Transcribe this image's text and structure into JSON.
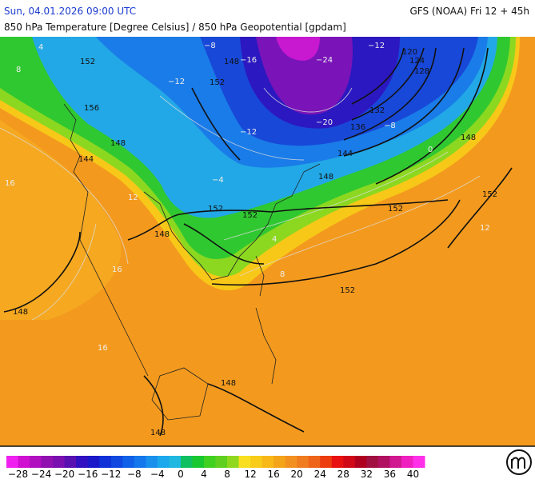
{
  "header": {
    "datetime": "Sun, 04.01.2026 09:00 UTC",
    "model": "GFS (NOAA) Fri 12 + 45h",
    "title": "850 hPa Temperature [Degree Celsius] / 850 hPa Geopotential [gpdam]"
  },
  "map": {
    "contour_labels": [
      "152",
      "148",
      "156",
      "148",
      "144",
      "152",
      "152",
      "148",
      "152",
      "152",
      "148",
      "148",
      "148",
      "152",
      "144",
      "136",
      "132",
      "128",
      "124",
      "120",
      "148",
      "152",
      "148"
    ],
    "isotherm_labels": [
      "−24",
      "−20",
      "−12",
      "−16",
      "−12",
      "−8",
      "−4",
      "0",
      "4",
      "8",
      "12",
      "16",
      "16",
      "16",
      "12",
      "4",
      "8",
      "−12",
      "−8"
    ]
  },
  "legend": {
    "colors": [
      "#f020f0",
      "#d010d0",
      "#b010c0",
      "#9010b0",
      "#7a10b0",
      "#5810b0",
      "#3010c0",
      "#1a18c8",
      "#1030d8",
      "#1048e0",
      "#1060e8",
      "#1478ec",
      "#1890ec",
      "#1ca8ec",
      "#20b8e0",
      "#10c060",
      "#18c830",
      "#40d020",
      "#60d020",
      "#90d820",
      "#f8e020",
      "#f8cc18",
      "#f8b818",
      "#f4a418",
      "#f29020",
      "#f07c20",
      "#ee6418",
      "#ec3c10",
      "#e81010",
      "#d00818",
      "#b00020",
      "#a01040",
      "#b01060",
      "#d01890",
      "#f020c0",
      "#ff30e8"
    ],
    "labels": [
      "−28",
      "−24",
      "−20",
      "−16",
      "−12",
      "−8",
      "−4",
      "0",
      "4",
      "8",
      "12",
      "16",
      "20",
      "24",
      "28",
      "32",
      "36",
      "40"
    ]
  }
}
